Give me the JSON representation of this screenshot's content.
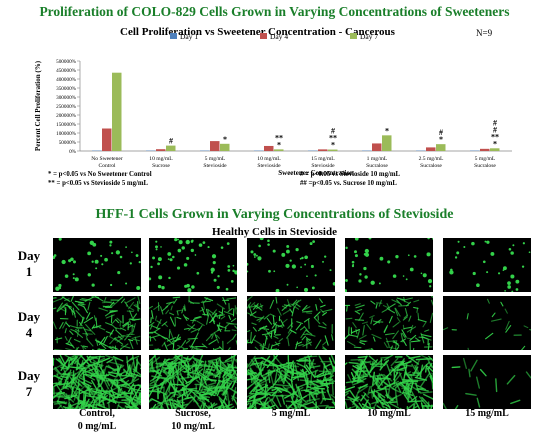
{
  "poster_title": "Proliferation of COLO-829 Cells Grown in Varying Concentrations of Sweeteners",
  "chart_data": {
    "type": "bar",
    "title": "Cell Proliferation vs Sweetener Concentration - Cancerous",
    "n_label": "N=9",
    "xlabel": "Sweetener Concentration",
    "ylabel": "Percent Cell Proliferation (%)",
    "ylim": [
      0,
      500000
    ],
    "yticks": [
      "0%",
      "50000%",
      "100000%",
      "150000%",
      "200000%",
      "250000%",
      "300000%",
      "350000%",
      "400000%",
      "450000%",
      "500000%"
    ],
    "legend_position": "top",
    "categories": [
      [
        "No Sweetener",
        "Control"
      ],
      [
        "10 mg/mL",
        "Sucrose"
      ],
      [
        "5 mg/mL",
        "Stevioside"
      ],
      [
        "10 mg/mL",
        "Stevioside"
      ],
      [
        "15 mg/mL",
        "Stevioside"
      ],
      [
        "1 mg/mL",
        "Sucralose"
      ],
      [
        "2.5 mg/mL",
        "Sucralose"
      ],
      [
        "5 mg/mL",
        "Sucralose"
      ]
    ],
    "series": [
      {
        "name": "Day 1",
        "color": "#4f81bd",
        "values": [
          0,
          0,
          0,
          0,
          0,
          0,
          0,
          0
        ]
      },
      {
        "name": "Day 4",
        "color": "#c0504d",
        "values": [
          125000,
          10000,
          55000,
          28000,
          9000,
          42000,
          20000,
          12000
        ]
      },
      {
        "name": "Day 7",
        "color": "#9bbb59",
        "values": [
          435000,
          30000,
          40000,
          9000,
          8000,
          87000,
          38000,
          15000
        ]
      }
    ],
    "significance": [
      [],
      [
        "#"
      ],
      [
        "*"
      ],
      [
        "**",
        "*"
      ],
      [
        "#",
        "**",
        "*"
      ],
      [
        "*"
      ],
      [
        "#",
        "*"
      ],
      [
        "#",
        "#",
        "**",
        "*"
      ]
    ]
  },
  "footnotes": {
    "left_1": "* = p<0.05 vs No Sweetener Control",
    "left_2": "** = p<0.05 vs Stevioside 5 mg/mL",
    "right_1": "# = p<0.05 vs Stevioside 10 mg/mL",
    "right_2": "## =p<0.05 vs. Sucrose 10 mg/mL"
  },
  "micrographs": {
    "title": "HFF-1 Cells Grown in Varying Concentrations of Stevioside",
    "subtitle": "Healthy Cells in Stevioside",
    "rows": [
      {
        "line1": "Day",
        "line2": "1"
      },
      {
        "line1": "Day",
        "line2": "4"
      },
      {
        "line1": "Day",
        "line2": "7"
      }
    ],
    "columns": [
      {
        "line1": "Control,",
        "line2": "0 mg/mL"
      },
      {
        "line1": "Sucrose,",
        "line2": "10 mg/mL"
      },
      {
        "line1": "5 mg/mL",
        "line2": ""
      },
      {
        "line1": "10 mg/mL",
        "line2": ""
      },
      {
        "line1": "15 mg/mL",
        "line2": ""
      }
    ],
    "cell_color": "#33d24a",
    "background_color": "#000000"
  }
}
